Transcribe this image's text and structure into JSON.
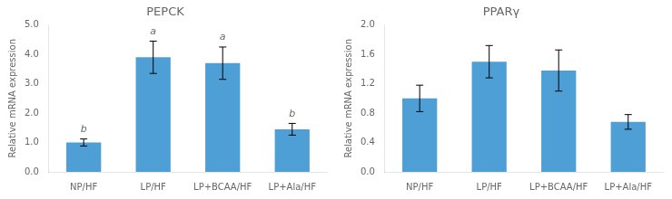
{
  "chart_data": [
    {
      "type": "bar",
      "title": "PEPCK",
      "ylabel": "Relative mRNA expression",
      "categories": [
        "NP/HF",
        "LP/HF",
        "LP+BCAA/HF",
        "LP+Ala/HF"
      ],
      "values": [
        1.0,
        3.9,
        3.7,
        1.45
      ],
      "errors": [
        0.12,
        0.55,
        0.55,
        0.2
      ],
      "letters": [
        "b",
        "a",
        "a",
        "b"
      ],
      "color": "#4d9fd6",
      "ylim": [
        0,
        5.0
      ],
      "yticks": [
        {
          "value": 0.0,
          "label": "0.0"
        },
        {
          "value": 1.0,
          "label": "1.0"
        },
        {
          "value": 2.0,
          "label": "2.0"
        },
        {
          "value": 3.0,
          "label": "3.0"
        },
        {
          "value": 4.0,
          "label": "4.0"
        },
        {
          "value": 5.0,
          "label": "5.0"
        }
      ],
      "grid": false
    },
    {
      "type": "bar",
      "title": "PPARγ",
      "ylabel": "Relative mRNA expression",
      "categories": [
        "NP/HF",
        "LP/HF",
        "LP+BCAA/HF",
        "LP+Ala/HF"
      ],
      "values": [
        1.0,
        1.5,
        1.38,
        0.68
      ],
      "errors": [
        0.18,
        0.22,
        0.28,
        0.1
      ],
      "color": "#4d9fd6",
      "ylim": [
        0,
        2.0
      ],
      "yticks": [
        {
          "value": 0.0,
          "label": "0.0"
        },
        {
          "value": 0.4,
          "label": "0.4"
        },
        {
          "value": 0.8,
          "label": "0.8"
        },
        {
          "value": 1.2,
          "label": "1.2"
        },
        {
          "value": 1.6,
          "label": "1.6"
        },
        {
          "value": 2.0,
          "label": "2.0"
        }
      ],
      "grid": false
    }
  ]
}
